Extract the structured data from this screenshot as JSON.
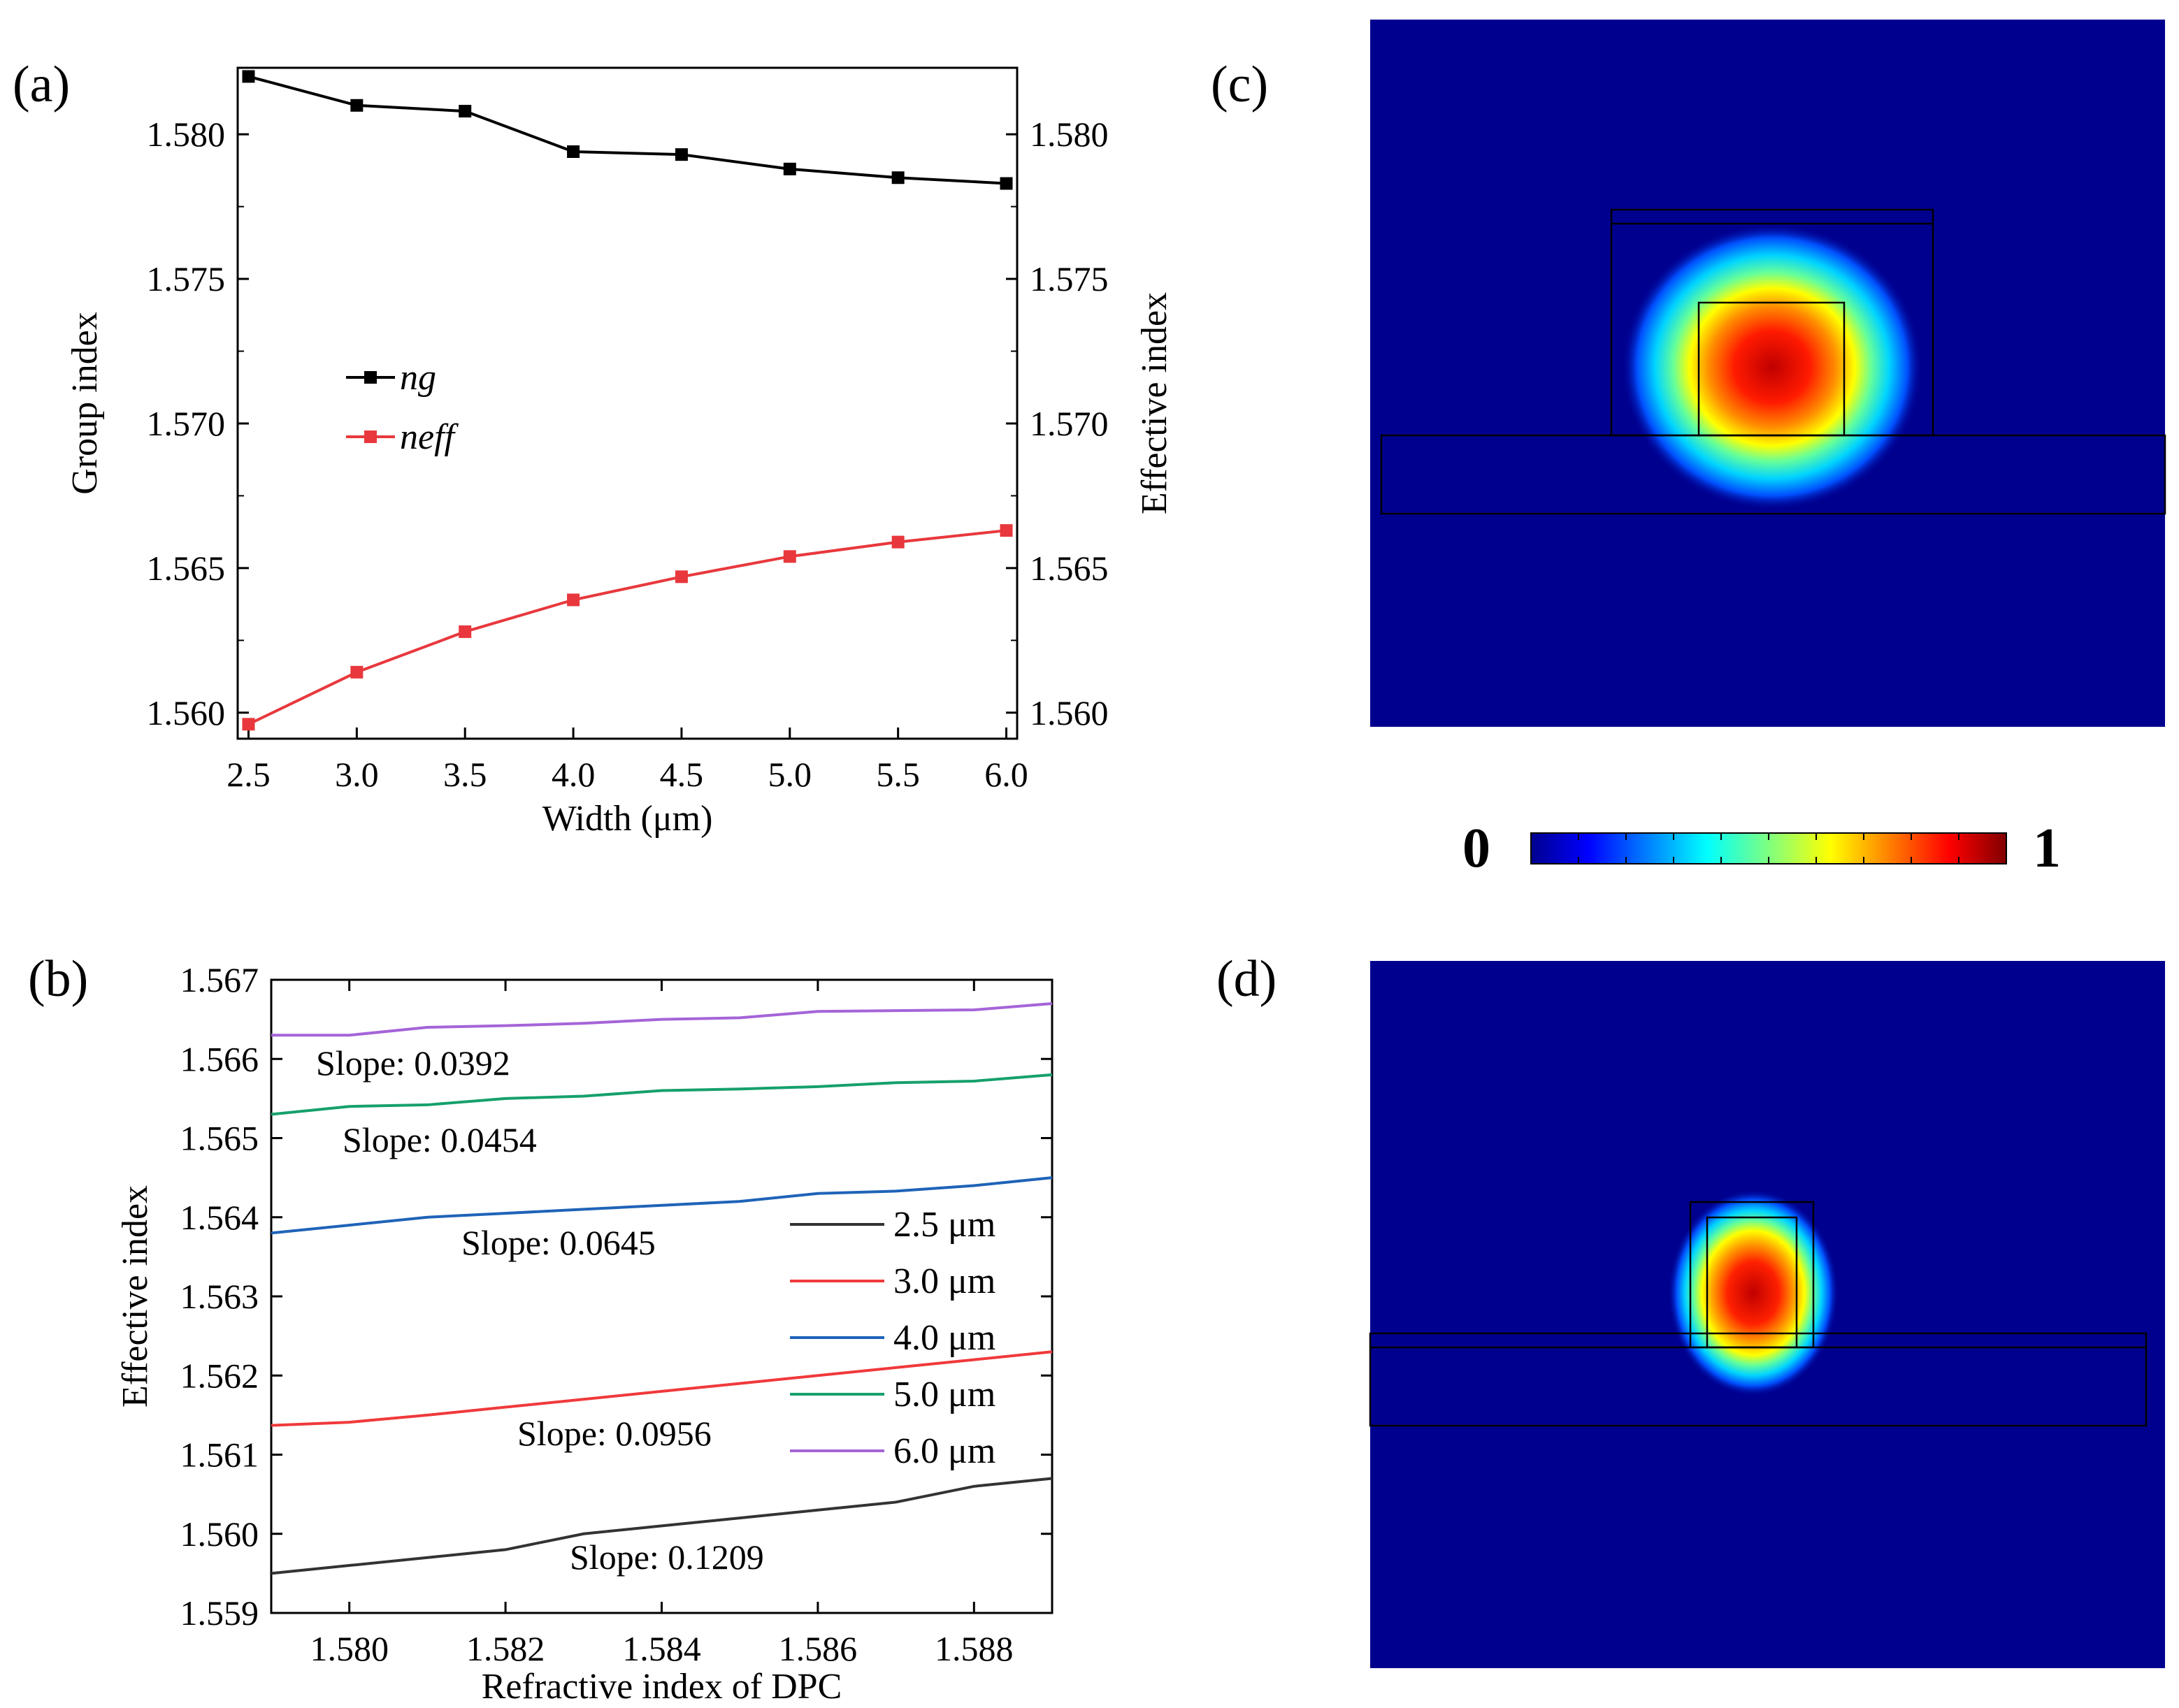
{
  "panels": {
    "a": "(a)",
    "b": "(b)",
    "c": "(c)",
    "d": "(d)"
  },
  "chart_data": [
    {
      "panel": "a",
      "type": "line",
      "xlabel": "Width (μm)",
      "ylabel_left": "Group index",
      "ylabel_right": "Effective index",
      "xlim": [
        2.45,
        6.05
      ],
      "ylim": [
        1.5591,
        1.5823
      ],
      "x_ticks": [
        "2.5",
        "3.0",
        "3.5",
        "4.0",
        "4.5",
        "5.0",
        "5.5",
        "6.0"
      ],
      "y_ticks_left": [
        "1.560",
        "1.565",
        "1.570",
        "1.575",
        "1.580"
      ],
      "y_ticks_right": [
        "1.560",
        "1.565",
        "1.570",
        "1.575",
        "1.580"
      ],
      "x": [
        2.5,
        3.0,
        3.5,
        4.0,
        4.5,
        5.0,
        5.5,
        6.0
      ],
      "series": [
        {
          "name": "ng",
          "color": "#000000",
          "values": [
            1.582,
            1.581,
            1.5808,
            1.5794,
            1.5793,
            1.5788,
            1.5785,
            1.5783
          ]
        },
        {
          "name": "neff",
          "color": "#e8383d",
          "values": [
            1.5596,
            1.5614,
            1.5628,
            1.5639,
            1.5647,
            1.5654,
            1.5659,
            1.5663
          ]
        }
      ],
      "legend_position": "center-left"
    },
    {
      "panel": "b",
      "type": "line",
      "xlabel": "Refractive index of DPC",
      "ylabel": "Effective index",
      "xlim": [
        1.579,
        1.589
      ],
      "ylim": [
        1.559,
        1.567
      ],
      "x_ticks": [
        "1.580",
        "1.582",
        "1.584",
        "1.586",
        "1.588"
      ],
      "y_ticks": [
        "1.559",
        "1.560",
        "1.561",
        "1.562",
        "1.563",
        "1.564",
        "1.565",
        "1.566",
        "1.567"
      ],
      "x": [
        1.579,
        1.58,
        1.581,
        1.582,
        1.583,
        1.584,
        1.585,
        1.586,
        1.587,
        1.588,
        1.589
      ],
      "series": [
        {
          "name": "2.5 μm",
          "color": "#333333",
          "values": [
            1.5595,
            1.5596,
            1.5597,
            1.5598,
            1.56,
            1.5601,
            1.5602,
            1.5603,
            1.5604,
            1.5606,
            1.5607
          ],
          "slope": "Slope: 0.1209"
        },
        {
          "name": "3.0 μm",
          "color": "#f0393b",
          "values": [
            1.56137,
            1.56141,
            1.5615,
            1.5616,
            1.5617,
            1.5618,
            1.5619,
            1.562,
            1.5621,
            1.5622,
            1.5623
          ],
          "slope": "Slope: 0.0956"
        },
        {
          "name": "4.0 μm",
          "color": "#1f63b8",
          "values": [
            1.5638,
            1.5639,
            1.564,
            1.56405,
            1.5641,
            1.56415,
            1.5642,
            1.5643,
            1.56433,
            1.5644,
            1.5645
          ],
          "slope": "Slope: 0.0645"
        },
        {
          "name": "5.0 μm",
          "color": "#16a06c",
          "values": [
            1.5653,
            1.5654,
            1.56542,
            1.5655,
            1.56553,
            1.5656,
            1.56562,
            1.56565,
            1.5657,
            1.56572,
            1.5658
          ],
          "slope": "Slope: 0.0454"
        },
        {
          "name": "6.0 μm",
          "color": "#a564d8",
          "values": [
            1.5663,
            1.5663,
            1.5664,
            1.56642,
            1.56645,
            1.5665,
            1.56652,
            1.5666,
            1.56661,
            1.56662,
            1.5667
          ],
          "slope": "Slope: 0.0392"
        }
      ],
      "legend_position": "right"
    }
  ],
  "colorbar": {
    "min_label": "0",
    "max_label": "1"
  }
}
